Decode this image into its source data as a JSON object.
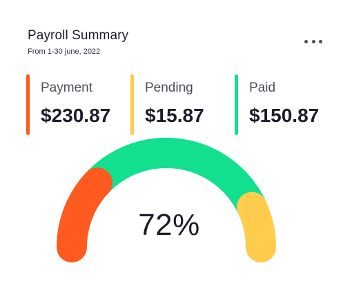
{
  "header": {
    "title": "Payroll Summary",
    "subtitle": "From 1-30 june, 2022"
  },
  "stats": [
    {
      "label": "Payment",
      "value": "$230.87",
      "color": "#ff5a1f"
    },
    {
      "label": "Pending",
      "value": "$15.87",
      "color": "#ffcc4d"
    },
    {
      "label": "Paid",
      "value": "$150.87",
      "color": "#12e08e"
    }
  ],
  "gauge": {
    "percent_label": "72%",
    "segments": [
      {
        "name": "payment",
        "fraction": 0.24,
        "color": "#ff5a1f"
      },
      {
        "name": "paid",
        "fraction": 0.62,
        "color": "#12e08e"
      },
      {
        "name": "pending",
        "fraction": 0.14,
        "color": "#ffcc4d"
      }
    ]
  },
  "menu_icon": "more-horizontal-icon"
}
